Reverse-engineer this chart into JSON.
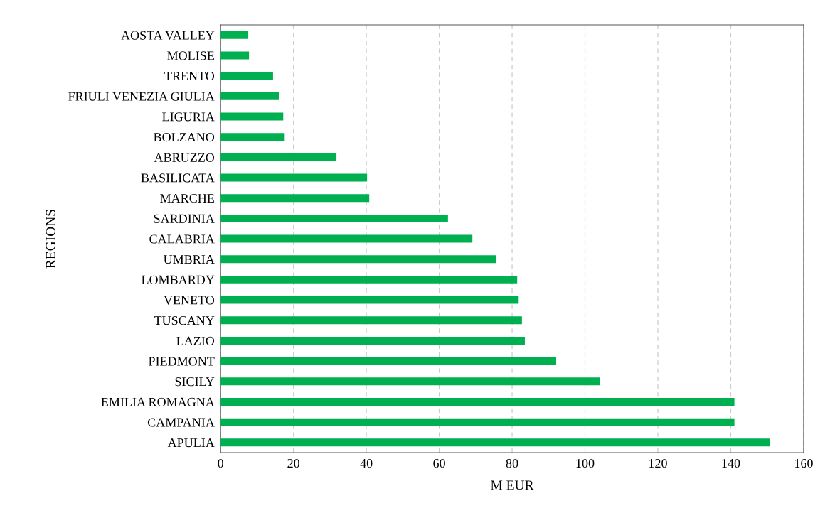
{
  "chart_data": {
    "type": "bar",
    "orientation": "horizontal",
    "xlabel": "M EUR",
    "ylabel": "REGIONS",
    "categories": [
      "AOSTA VALLEY",
      "MOLISE",
      "TRENTO",
      "FRIULI VENEZIA GIULIA",
      "LIGURIA",
      "BOLZANO",
      "ABRUZZO",
      "BASILICATA",
      "MARCHE",
      "SARDINIA",
      "CALABRIA",
      "UMBRIA",
      "LOMBARDY",
      "VENETO",
      "TUSCANY",
      "LAZIO",
      "PIEDMONT",
      "SICILY",
      "EMILIA ROMAGNA",
      "CAMPANIA",
      "APULIA"
    ],
    "values": [
      7.6,
      7.8,
      14.4,
      16,
      17.2,
      17.6,
      31.8,
      40.2,
      40.8,
      62.4,
      69.1,
      75.7,
      81.4,
      81.8,
      82.7,
      83.5,
      92.1,
      104,
      141,
      141,
      150.8
    ],
    "color": "#00b050",
    "xlim": [
      0,
      160
    ],
    "xticks": [
      0,
      20,
      40,
      60,
      80,
      100,
      120,
      140,
      160
    ],
    "grid": "x",
    "line_style": "dashed",
    "legend": false
  }
}
